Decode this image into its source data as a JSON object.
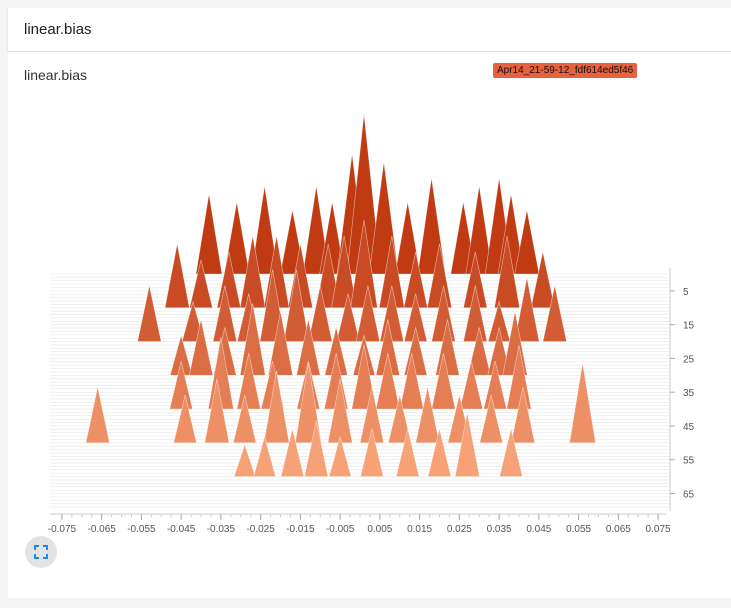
{
  "header": {
    "title": "linear.bias"
  },
  "panel": {
    "title": "linear.bias",
    "run_label": "Apr14_21-59-12_fdf614ed5f46",
    "run_color": "#e8603c"
  },
  "chart_data": {
    "type": "histogram-ridgeline",
    "title": "linear.bias",
    "x_ticks": [
      "-0.075",
      "-0.065",
      "-0.055",
      "-0.045",
      "-0.035",
      "-0.025",
      "-0.015",
      "-0.005",
      "0.005",
      "0.015",
      "0.025",
      "0.035",
      "0.045",
      "0.055",
      "0.065",
      "0.075"
    ],
    "x_range": [
      -0.078,
      0.078
    ],
    "step_ticks": [
      "5",
      "15",
      "25",
      "35",
      "45",
      "55",
      "65"
    ],
    "step_range": [
      0,
      69
    ],
    "color_old": "#c03a12",
    "color_new": "#ffb085",
    "steps": [
      {
        "step": 0,
        "peaks": [
          [
            -0.038,
            0.5
          ],
          [
            -0.031,
            0.45
          ],
          [
            -0.024,
            0.55
          ],
          [
            -0.017,
            0.4
          ],
          [
            -0.011,
            0.55
          ],
          [
            -0.007,
            0.45
          ],
          [
            -0.002,
            0.75
          ],
          [
            0.001,
            1.0
          ],
          [
            0.006,
            0.7
          ],
          [
            0.012,
            0.45
          ],
          [
            0.018,
            0.6
          ],
          [
            0.026,
            0.45
          ],
          [
            0.03,
            0.55
          ],
          [
            0.035,
            0.6
          ],
          [
            0.038,
            0.5
          ],
          [
            0.042,
            0.4
          ]
        ]
      },
      {
        "step": 10,
        "peaks": [
          [
            -0.046,
            0.4
          ],
          [
            -0.04,
            0.3
          ],
          [
            -0.033,
            0.35
          ],
          [
            -0.027,
            0.45
          ],
          [
            -0.021,
            0.45
          ],
          [
            -0.015,
            0.4
          ],
          [
            -0.008,
            0.4
          ],
          [
            -0.004,
            0.45
          ],
          [
            0.001,
            0.55
          ],
          [
            0.008,
            0.45
          ],
          [
            0.014,
            0.35
          ],
          [
            0.02,
            0.4
          ],
          [
            0.029,
            0.35
          ],
          [
            0.037,
            0.45
          ],
          [
            0.046,
            0.35
          ]
        ]
      },
      {
        "step": 20,
        "peaks": [
          [
            -0.053,
            0.35
          ],
          [
            -0.042,
            0.25
          ],
          [
            -0.034,
            0.35
          ],
          [
            -0.028,
            0.3
          ],
          [
            -0.022,
            0.45
          ],
          [
            -0.016,
            0.45
          ],
          [
            -0.01,
            0.35
          ],
          [
            -0.003,
            0.3
          ],
          [
            0.002,
            0.35
          ],
          [
            0.008,
            0.35
          ],
          [
            0.014,
            0.3
          ],
          [
            0.021,
            0.35
          ],
          [
            0.029,
            0.35
          ],
          [
            0.035,
            0.25
          ],
          [
            0.042,
            0.4
          ],
          [
            0.049,
            0.35
          ]
        ]
      },
      {
        "step": 30,
        "peaks": [
          [
            -0.045,
            0.25
          ],
          [
            -0.04,
            0.35
          ],
          [
            -0.034,
            0.3
          ],
          [
            -0.027,
            0.45
          ],
          [
            -0.02,
            0.4
          ],
          [
            -0.013,
            0.35
          ],
          [
            -0.006,
            0.3
          ],
          [
            0.001,
            0.25
          ],
          [
            0.007,
            0.35
          ],
          [
            0.014,
            0.3
          ],
          [
            0.022,
            0.35
          ],
          [
            0.03,
            0.3
          ],
          [
            0.035,
            0.3
          ],
          [
            0.039,
            0.4
          ]
        ]
      },
      {
        "step": 40,
        "peaks": [
          [
            -0.045,
            0.3
          ],
          [
            -0.035,
            0.45
          ],
          [
            -0.028,
            0.35
          ],
          [
            -0.022,
            0.3
          ],
          [
            -0.013,
            0.3
          ],
          [
            -0.006,
            0.35
          ],
          [
            0.001,
            0.4
          ],
          [
            0.007,
            0.35
          ],
          [
            0.013,
            0.35
          ],
          [
            0.021,
            0.35
          ],
          [
            0.028,
            0.3
          ],
          [
            0.034,
            0.3
          ],
          [
            0.04,
            0.4
          ]
        ]
      },
      {
        "step": 50,
        "peaks": [
          [
            -0.066,
            0.35
          ],
          [
            -0.044,
            0.3
          ],
          [
            -0.036,
            0.4
          ],
          [
            -0.029,
            0.3
          ],
          [
            -0.021,
            0.45
          ],
          [
            -0.013,
            0.5
          ],
          [
            -0.005,
            0.4
          ],
          [
            0.003,
            0.35
          ],
          [
            0.01,
            0.3
          ],
          [
            0.017,
            0.35
          ],
          [
            0.025,
            0.3
          ],
          [
            0.033,
            0.3
          ],
          [
            0.041,
            0.35
          ],
          [
            0.056,
            0.5
          ]
        ]
      },
      {
        "step": 60,
        "peaks": [
          [
            -0.029,
            0.2
          ],
          [
            -0.024,
            0.25
          ],
          [
            -0.017,
            0.3
          ],
          [
            -0.011,
            0.35
          ],
          [
            -0.005,
            0.25
          ],
          [
            0.003,
            0.3
          ],
          [
            0.012,
            0.3
          ],
          [
            0.02,
            0.3
          ],
          [
            0.027,
            0.4
          ],
          [
            0.038,
            0.3
          ]
        ]
      }
    ]
  }
}
